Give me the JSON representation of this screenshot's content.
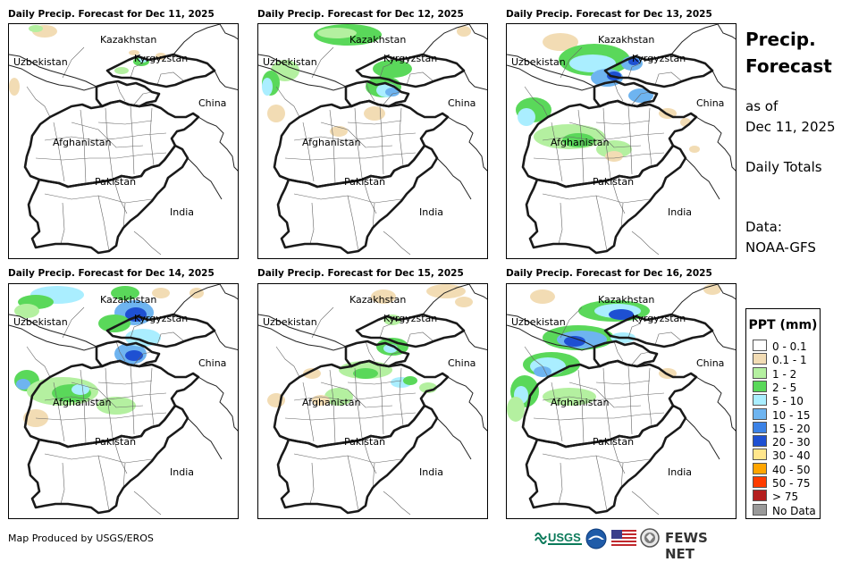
{
  "panels": [
    {
      "title": "Daily Precip. Forecast for Dec 11, 2025",
      "intensity": 0
    },
    {
      "title": "Daily Precip. Forecast for Dec 12, 2025",
      "intensity": 1
    },
    {
      "title": "Daily Precip. Forecast for Dec 13, 2025",
      "intensity": 2
    },
    {
      "title": "Daily Precip. Forecast for Dec 14, 2025",
      "intensity": 3
    },
    {
      "title": "Daily Precip. Forecast for Dec 15, 2025",
      "intensity": 4
    },
    {
      "title": "Daily Precip. Forecast for Dec 16, 2025",
      "intensity": 5
    }
  ],
  "labels": {
    "kazakhstan": "Kazakhstan",
    "uzbekistan": "Uzbekistan",
    "kyrgyzstan": "Kyrgyzstan",
    "china": "China",
    "afghanistan": "Afghanistan",
    "pakistan": "Pakistan",
    "india": "India"
  },
  "side": {
    "title_line1": "Precip.",
    "title_line2": "Forecast",
    "asof_line1": "as of",
    "asof_line2": "Dec 11, 2025",
    "totals": "Daily Totals",
    "data_line1": "Data:",
    "data_line2": "NOAA-GFS"
  },
  "legend": {
    "title": "PPT (mm)",
    "items": [
      {
        "label": "0 - 0.1",
        "color": "#ffffff"
      },
      {
        "label": "0.1 - 1",
        "color": "#f2dcb4"
      },
      {
        "label": "1 - 2",
        "color": "#b4f0a0"
      },
      {
        "label": "2 - 5",
        "color": "#5ad85a"
      },
      {
        "label": "5 - 10",
        "color": "#aaeeff"
      },
      {
        "label": "10 - 15",
        "color": "#6eb4f0"
      },
      {
        "label": "15 - 20",
        "color": "#3c82e6"
      },
      {
        "label": "20 - 30",
        "color": "#1e50d2"
      },
      {
        "label": "30 - 40",
        "color": "#ffe68c"
      },
      {
        "label": "40 - 50",
        "color": "#ffa500"
      },
      {
        "label": "50 - 75",
        "color": "#ff3c00"
      },
      {
        "label": "> 75",
        "color": "#b41e1e"
      },
      {
        "label": "No Data",
        "color": "#999999"
      }
    ]
  },
  "footer": {
    "credit": "Map Produced by USGS/EROS"
  },
  "logos": {
    "usgs": "USGS",
    "fews": "FEWS NET"
  }
}
